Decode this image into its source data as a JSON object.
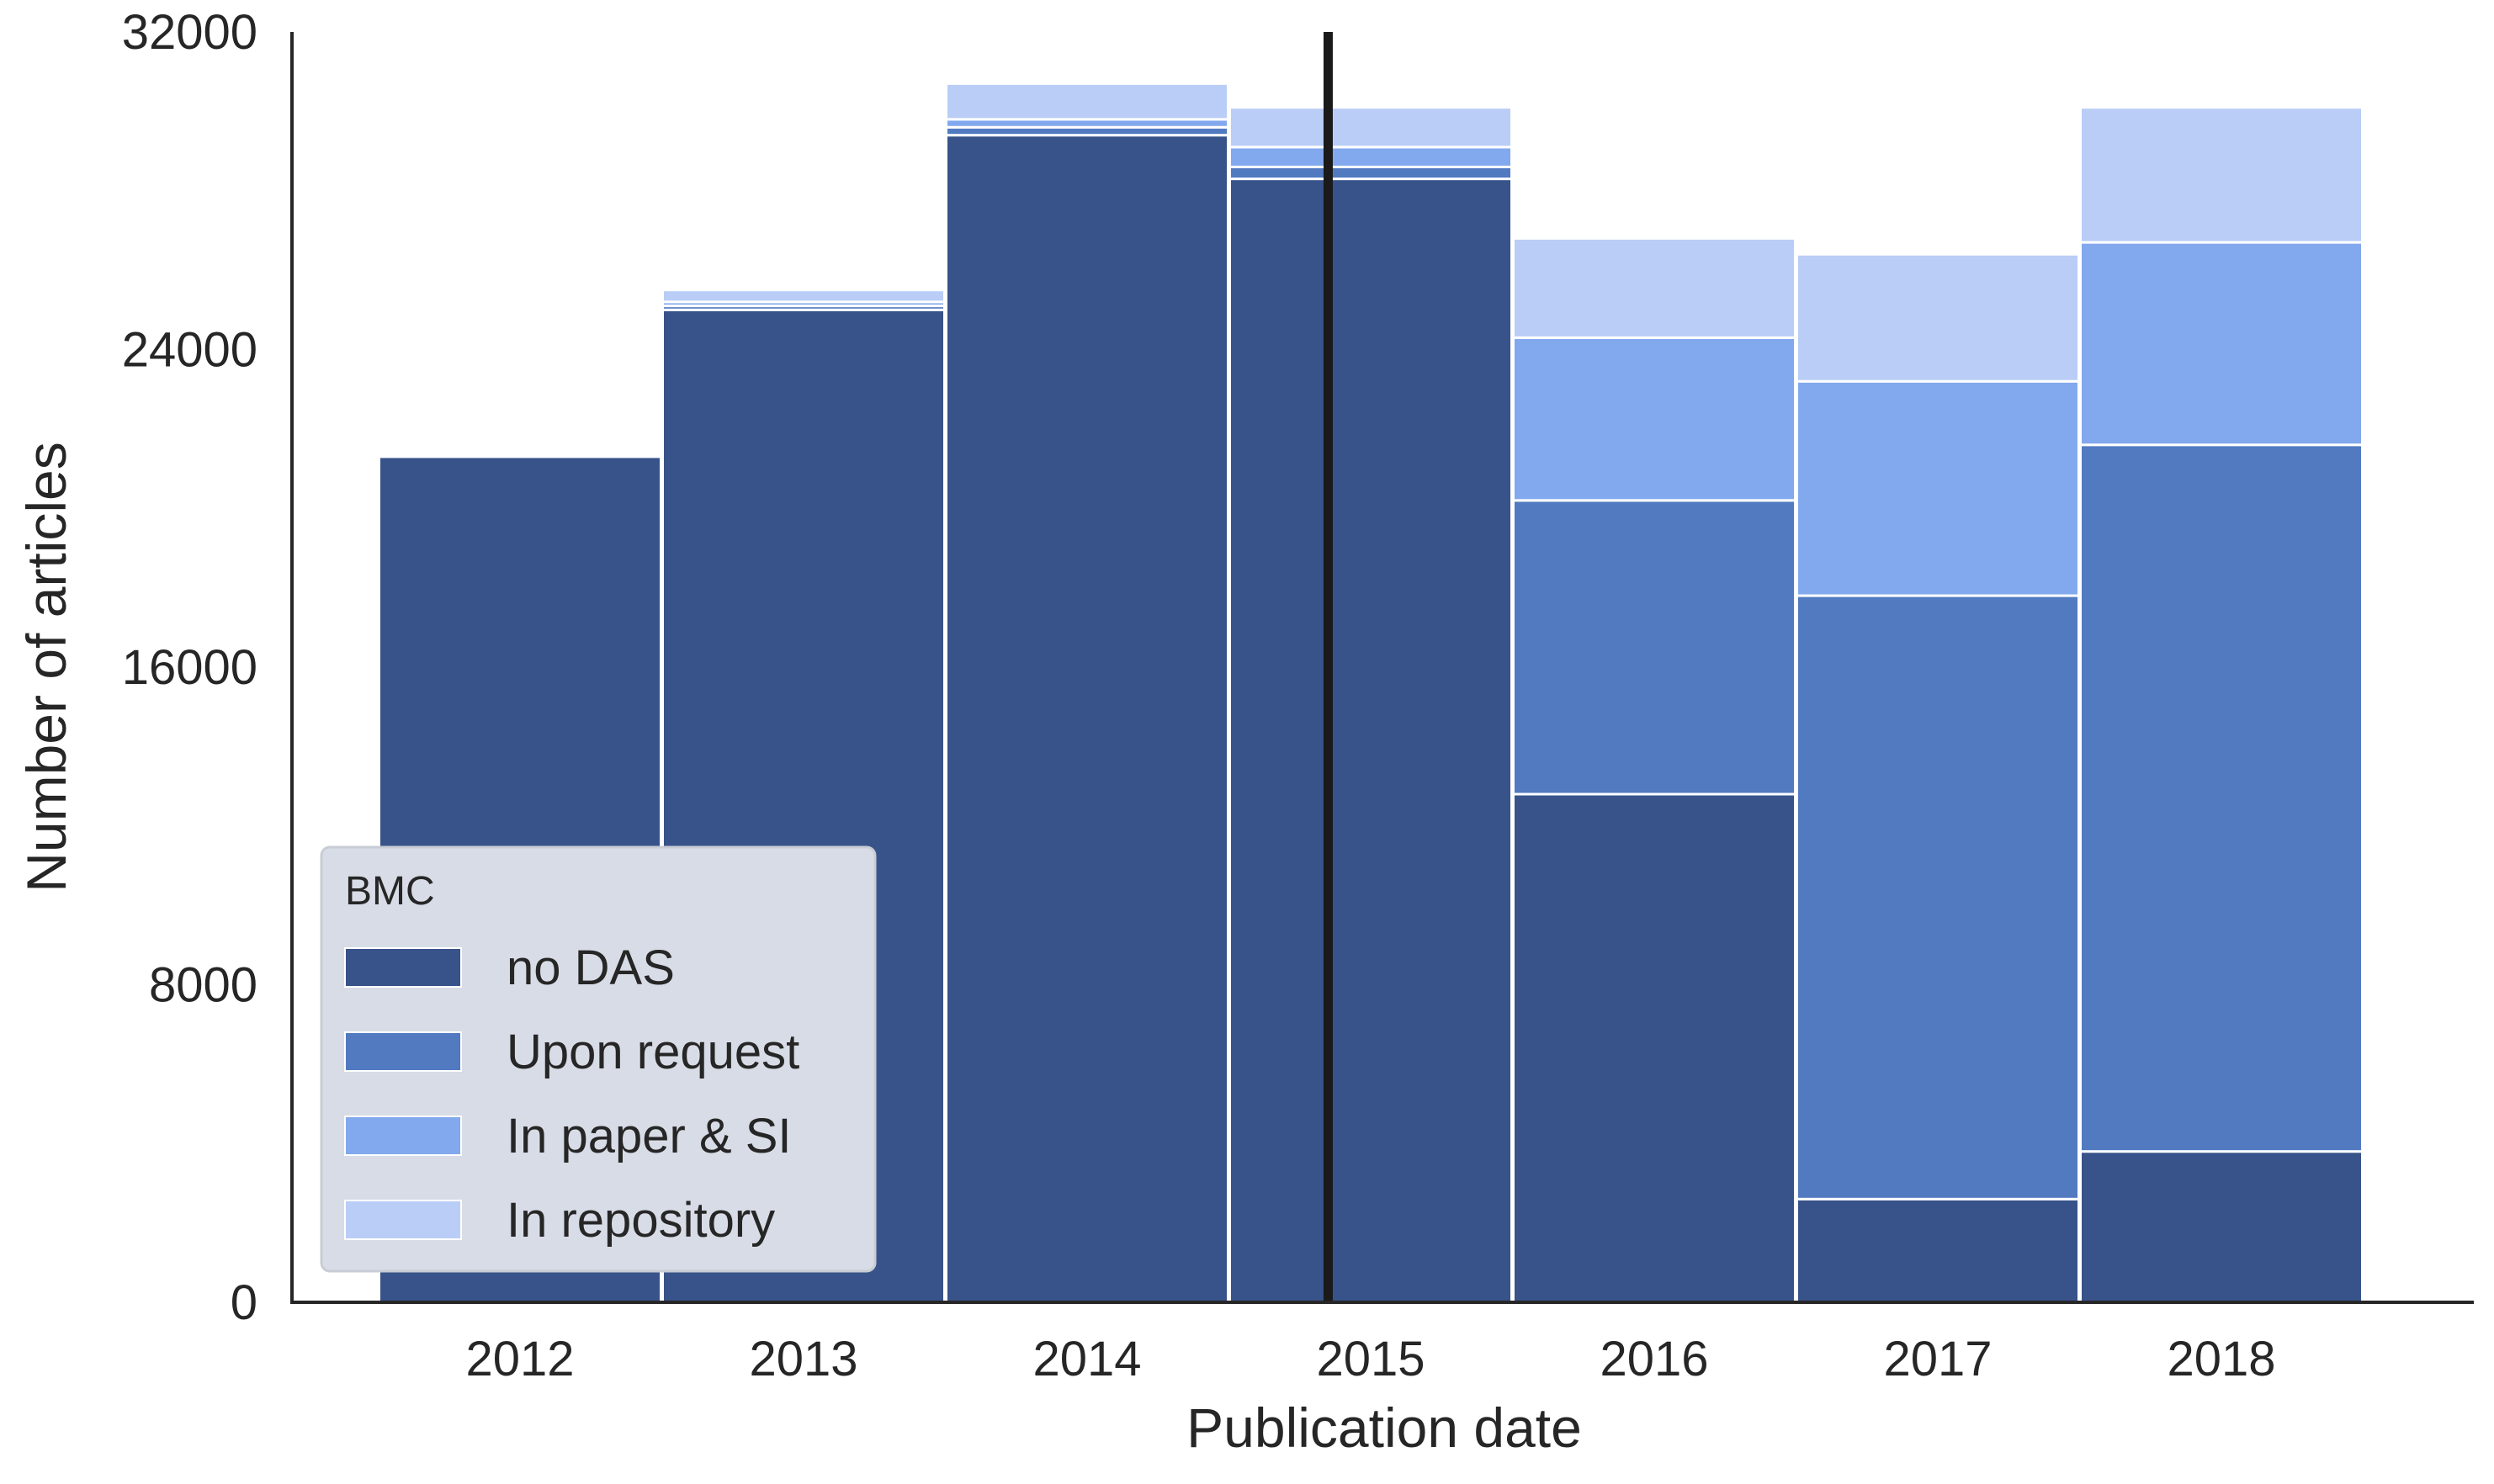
{
  "chart_data": {
    "type": "bar",
    "stacked": true,
    "title": "",
    "xlabel": "Publication date",
    "ylabel": "Number of articles",
    "categories": [
      "2012",
      "2013",
      "2014",
      "2015",
      "2016",
      "2017",
      "2018"
    ],
    "ylim": [
      0,
      32000
    ],
    "yticks": [
      "0",
      "8000",
      "16000",
      "24000",
      "32000"
    ],
    "grid": false,
    "series": [
      {
        "name": "no DAS",
        "color": "#38538a",
        "values": [
          21300,
          25000,
          29400,
          28300,
          12800,
          2600,
          3800
        ]
      },
      {
        "name": "Upon request",
        "color": "#517ac1",
        "values": [
          0,
          100,
          200,
          300,
          7400,
          15200,
          17800
        ]
      },
      {
        "name": "In paper & SI",
        "color": "#82a8ee",
        "values": [
          0,
          100,
          200,
          500,
          4100,
          5400,
          5100
        ]
      },
      {
        "name": "In repository",
        "color": "#b9cdf6",
        "values": [
          0,
          300,
          900,
          1000,
          2500,
          3200,
          3400
        ]
      }
    ],
    "reference_line": {
      "x": 2014.85,
      "color": "#1a1a1a"
    },
    "legend": {
      "title": "BMC",
      "placement": "lower-left"
    }
  }
}
